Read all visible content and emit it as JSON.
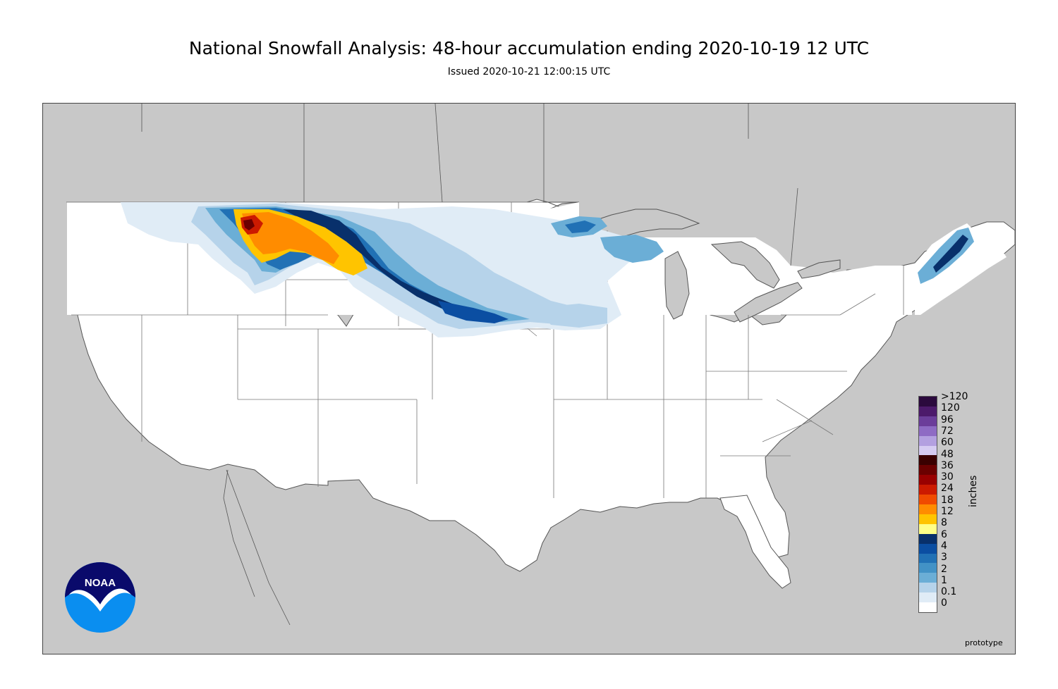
{
  "title": "National Snowfall Analysis: 48-hour accumulation ending 2020-10-19 12 UTC",
  "subtitle": "Issued 2020-10-21 12:00:15 UTC",
  "legend": {
    "units": "inches",
    "entries": [
      {
        "label": ">120",
        "color": "#2b0a3d"
      },
      {
        "label": "120",
        "color": "#4c1a6b"
      },
      {
        "label": "96",
        "color": "#6b3d9a"
      },
      {
        "label": "72",
        "color": "#8e6bc4"
      },
      {
        "label": "60",
        "color": "#b3a0e0"
      },
      {
        "label": "48",
        "color": "#d6ccf2"
      },
      {
        "label": "36",
        "color": "#3a0000"
      },
      {
        "label": "30",
        "color": "#6b0000"
      },
      {
        "label": "24",
        "color": "#990000"
      },
      {
        "label": "18",
        "color": "#cc1a00"
      },
      {
        "label": "12",
        "color": "#f04b00"
      },
      {
        "label": "8",
        "color": "#ff8c00"
      },
      {
        "label": "6",
        "color": "#ffc400"
      },
      {
        "label": "4",
        "color": "#ffff88"
      },
      {
        "label": "3",
        "color": "#08306b"
      },
      {
        "label": "2",
        "color": "#0b4ea2"
      },
      {
        "label": "1",
        "color": "#2171b5"
      },
      {
        "label": "0.1",
        "color": "#4292c6"
      },
      {
        "label": "0",
        "color": "#6baed6"
      }
    ],
    "extra_swatches": [
      "#b6d3ea",
      "#e0ecf6",
      "#ffffff"
    ]
  },
  "logo": {
    "text": "NOAA",
    "colors": {
      "dark": "#0a0a6b",
      "light": "#0a8ef0"
    }
  },
  "watermark": "prototype",
  "colors": {
    "land_us": "#ffffff",
    "land_other": "#c8c8c8",
    "water": "#c8c8c8",
    "borders": "#555555"
  }
}
